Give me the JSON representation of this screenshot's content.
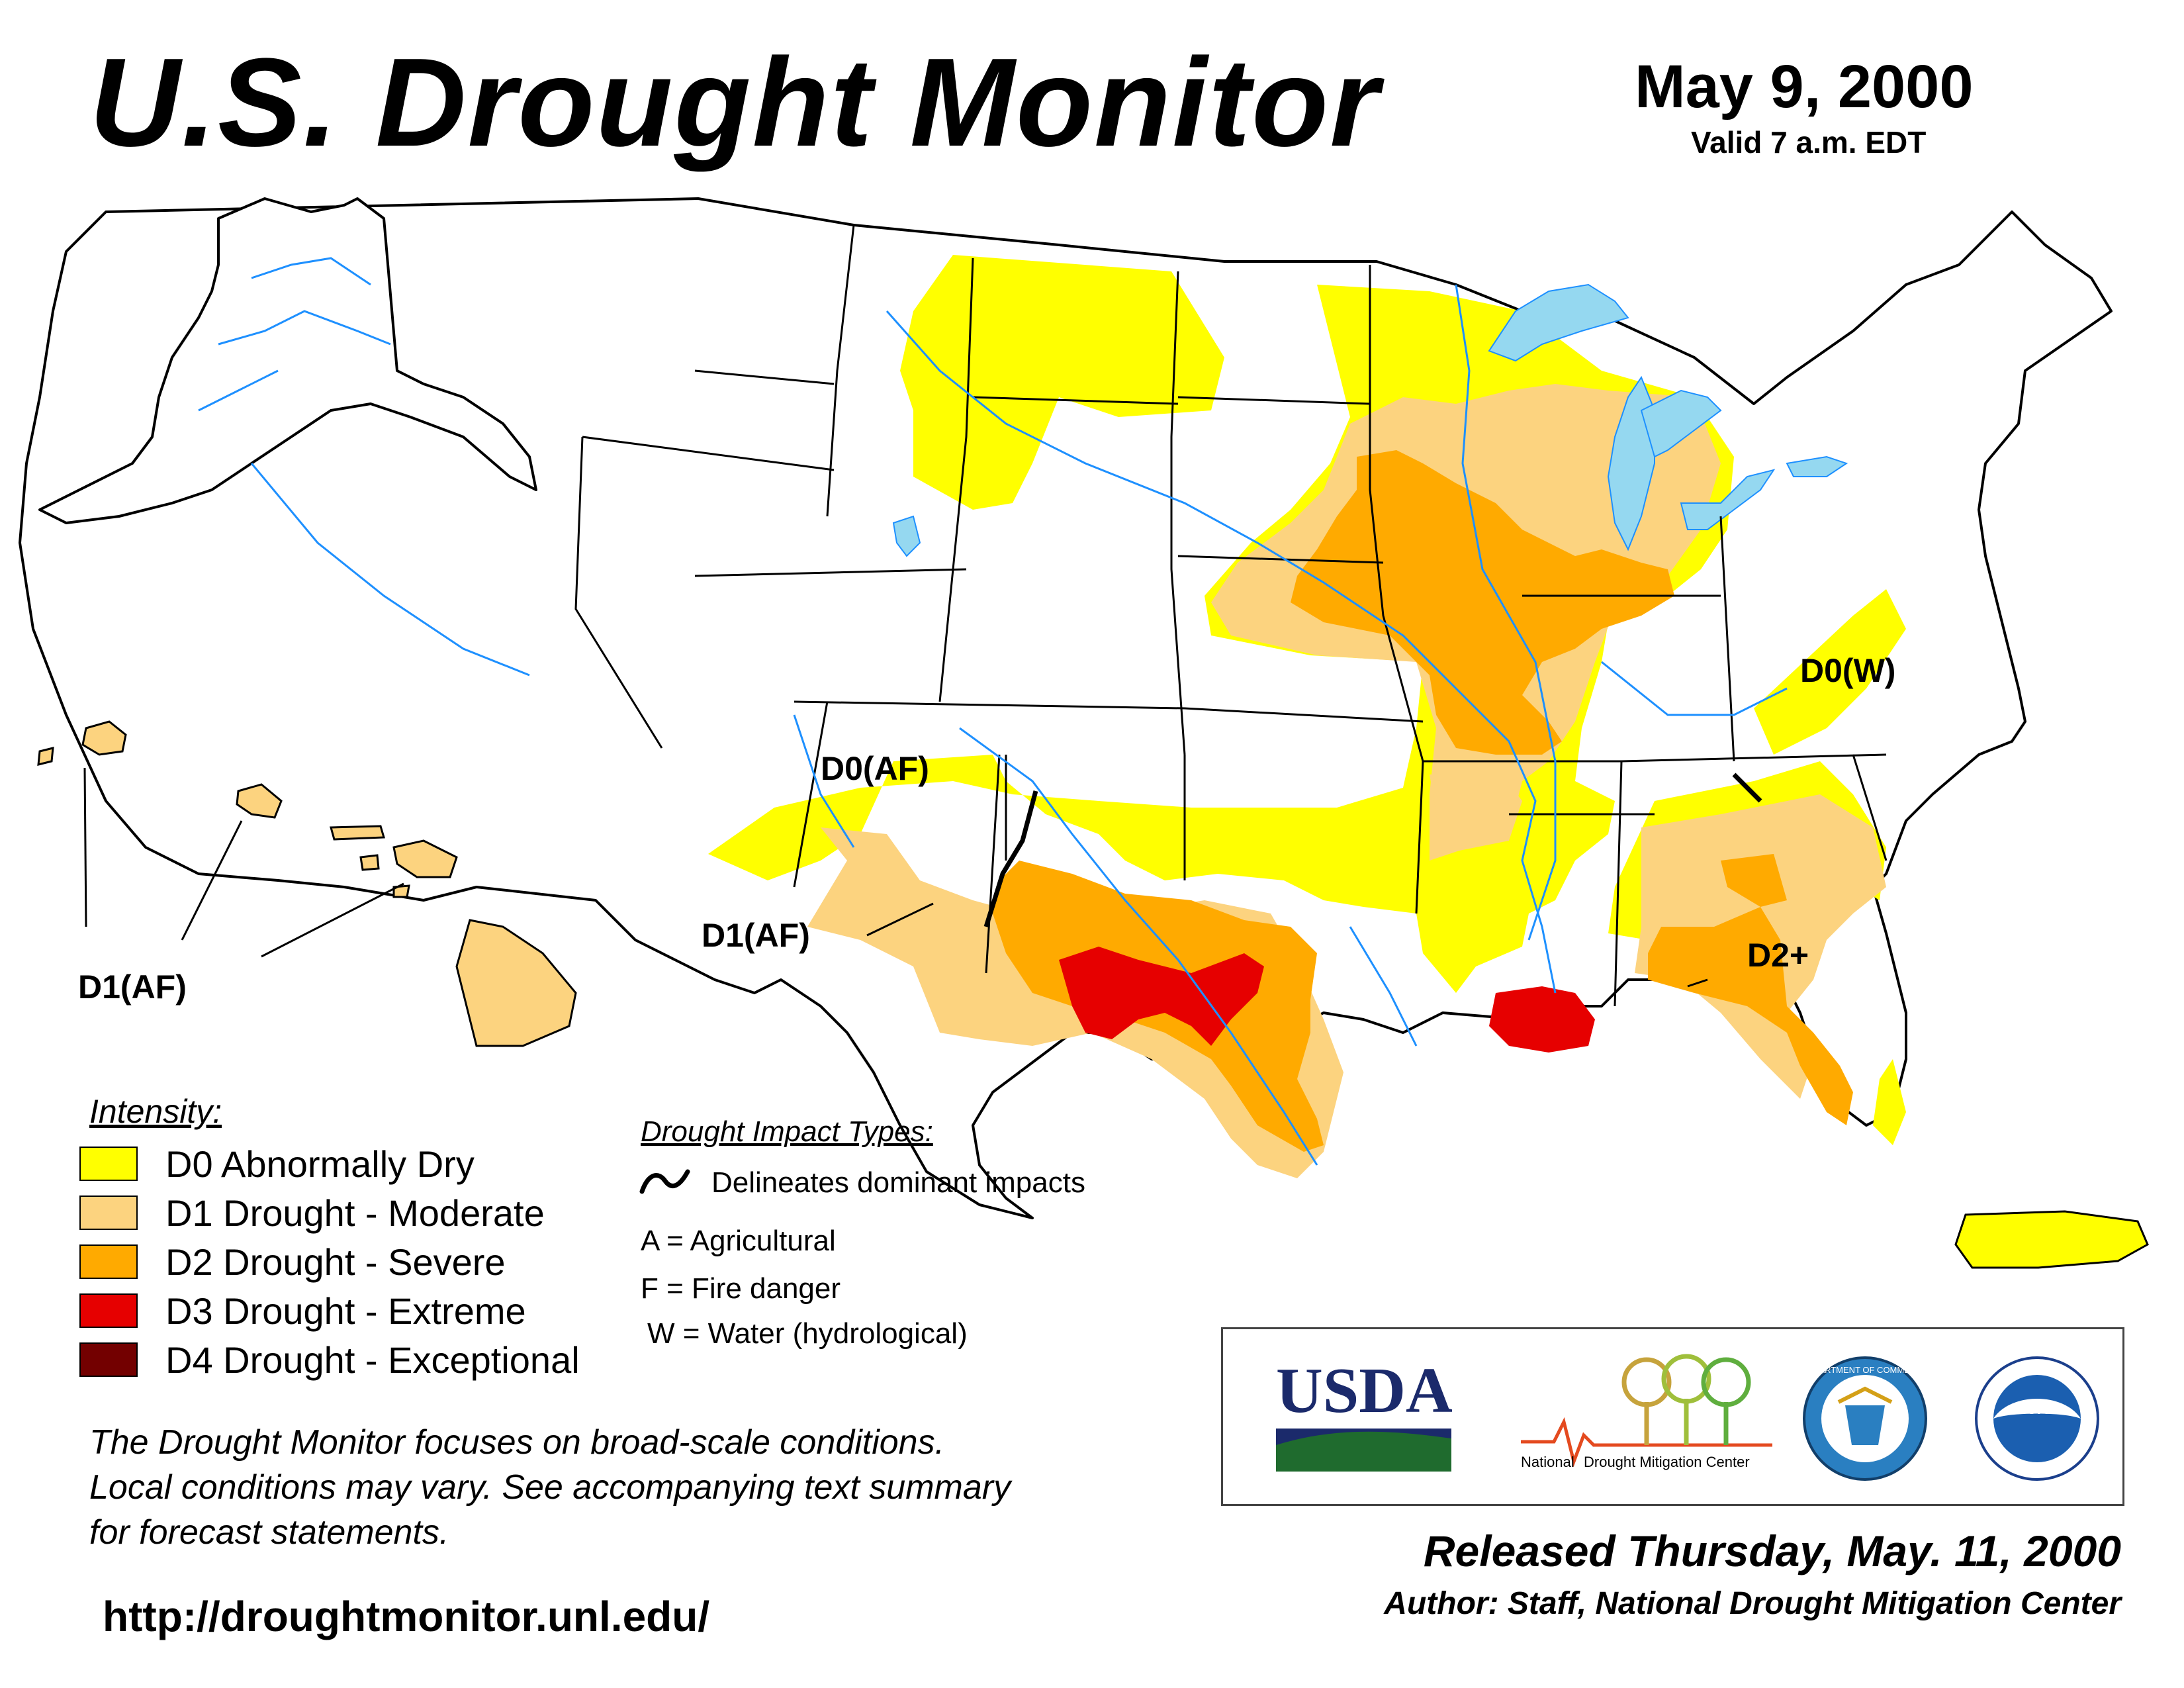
{
  "header": {
    "title": "U.S. Drought Monitor",
    "date": "May 9, 2000",
    "valid": "Valid 7 a.m. EDT"
  },
  "colors": {
    "d0": "#ffff00",
    "d1": "#fcd37f",
    "d2": "#ffaa00",
    "d3": "#e60000",
    "d4": "#730000",
    "water": "#95d8f0",
    "rivers": "#1e90ff",
    "county_lines": "#aaaaaa"
  },
  "map": {
    "labels": {
      "d0_af": "D0(AF)",
      "d1_af_sw": "D1(AF)",
      "d1_af_hawaii": "D1(AF)",
      "d0_w": "D0(W)",
      "d2_plus": "D2+"
    }
  },
  "legend": {
    "title": "Intensity:",
    "items": [
      {
        "label": "D0 Abnormally Dry",
        "color": "#ffff00"
      },
      {
        "label": "D1 Drought - Moderate",
        "color": "#fcd37f"
      },
      {
        "label": "D2 Drought - Severe",
        "color": "#ffaa00"
      },
      {
        "label": "D3 Drought - Extreme",
        "color": "#e60000"
      },
      {
        "label": "D4 Drought - Exceptional",
        "color": "#730000"
      }
    ]
  },
  "impacts": {
    "title": "Drought Impact Types:",
    "delineates": "Delineates dominant impacts",
    "types": [
      "A = Agricultural",
      "F = Fire danger",
      "W = Water (hydrological)"
    ]
  },
  "disclaimer": {
    "lines": [
      "The Drought Monitor focuses on broad-scale conditions.",
      "Local conditions may vary. See accompanying text summary",
      "for forecast statements."
    ]
  },
  "url": "http://droughtmonitor.unl.edu/",
  "logos": {
    "usda": "USDA",
    "ndmc_a": "National",
    "ndmc_b": "Drought Mitigation Center",
    "commerce_ring": "DEPARTMENT OF COMMERCE",
    "noaa": "NOAA"
  },
  "footer": {
    "released": "Released Thursday, May. 11, 2000",
    "author": "Author: Staff, National Drought Mitigation Center"
  }
}
